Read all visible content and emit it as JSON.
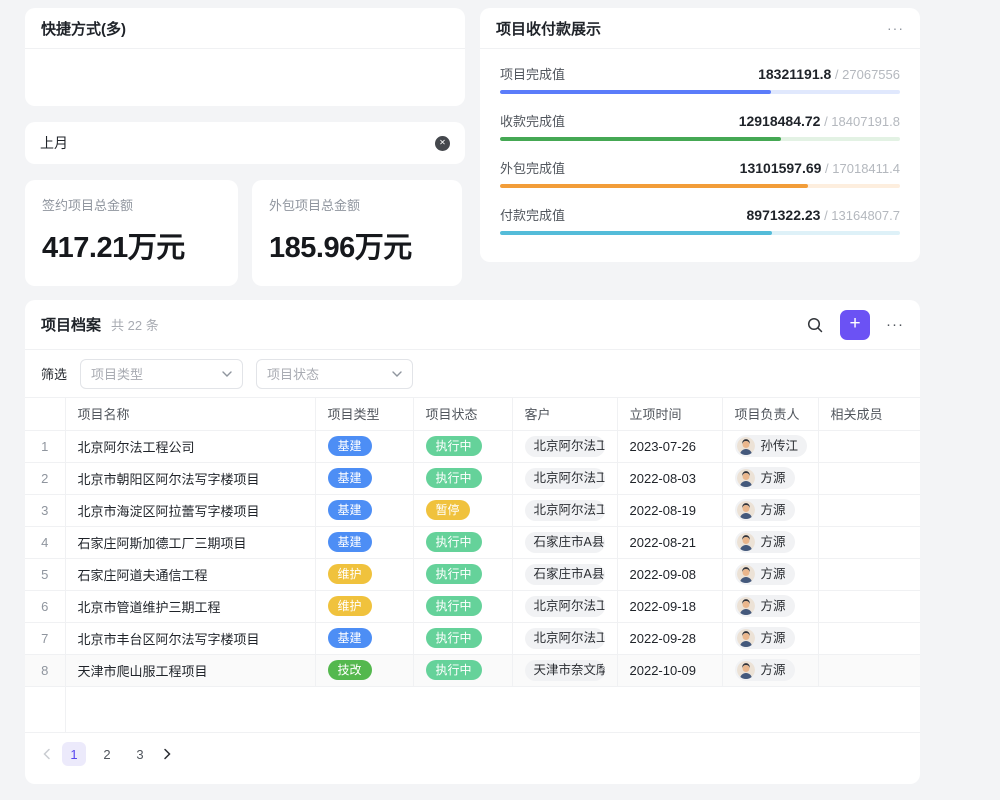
{
  "shortcut_card": {
    "title": "快捷方式(多)"
  },
  "chip_card": {
    "label": "上月",
    "clear_icon": "circle-x"
  },
  "stat_cards": [
    {
      "label": "签约项目总金额",
      "value": "417.21万元"
    },
    {
      "label": "外包项目总金额",
      "value": "185.96万元"
    }
  ],
  "progress_card": {
    "title": "项目收付款展示",
    "menu_icon": "ellipsis-icon",
    "rows": [
      {
        "label": "项目完成值",
        "value": "18321191.8",
        "total": "27067556",
        "bar_color": "#5b7cfa",
        "track_color": "#e0e8fd"
      },
      {
        "label": "收款完成值",
        "value": "12918484.72",
        "total": "18407191.8",
        "bar_color": "#45a854",
        "track_color": "#e3f2e4"
      },
      {
        "label": "外包完成值",
        "value": "13101597.69",
        "total": "17018411.4",
        "bar_color": "#f29d39",
        "track_color": "#fdeede"
      },
      {
        "label": "付款完成值",
        "value": "8971322.23",
        "total": "13164807.7",
        "bar_color": "#54bcd9",
        "track_color": "#def1f8"
      }
    ]
  },
  "table_card": {
    "title": "项目档案",
    "count": "共 22 条",
    "actions": {
      "search_icon": "search",
      "add_button": "+",
      "more_icon": "⋯"
    },
    "filter": {
      "label": "筛选",
      "dropdowns": [
        {
          "placeholder": "项目类型"
        },
        {
          "placeholder": "项目状态"
        }
      ]
    },
    "columns": [
      "项目名称",
      "项目类型",
      "项目状态",
      "客户",
      "立项时间",
      "项目负责人",
      "相关成员"
    ],
    "type_tag_colors": {
      "基建": "#4d8ef5",
      "维护": "#f0c23d",
      "技改": "#54b84e"
    },
    "status_tag_colors": {
      "执行中": "#65d29a",
      "暂停": "#f0c23d"
    },
    "rows": [
      {
        "num": "1",
        "name": "北京阿尔法工程公司",
        "type": "基建",
        "status": "执行中",
        "customer": "北京阿尔法工程公司",
        "date": "2023-07-26",
        "owner": "孙传江",
        "members": "",
        "highlight": false
      },
      {
        "num": "2",
        "name": "北京市朝阳区阿尔法写字楼项目",
        "type": "基建",
        "status": "执行中",
        "customer": "北京阿尔法工程公司",
        "date": "2022-08-03",
        "owner": "方源",
        "members": "",
        "highlight": false
      },
      {
        "num": "3",
        "name": "北京市海淀区阿拉蕾写字楼项目",
        "type": "基建",
        "status": "暂停",
        "customer": "北京阿尔法工程公司",
        "date": "2022-08-19",
        "owner": "方源",
        "members": "",
        "highlight": false
      },
      {
        "num": "4",
        "name": "石家庄阿斯加德工厂三期项目",
        "type": "基建",
        "status": "执行中",
        "customer": "石家庄市A县城投",
        "date": "2022-08-21",
        "owner": "方源",
        "members": "",
        "highlight": false
      },
      {
        "num": "5",
        "name": "石家庄阿道夫通信工程",
        "type": "维护",
        "status": "执行中",
        "customer": "石家庄市A县城投",
        "date": "2022-09-08",
        "owner": "方源",
        "members": "",
        "highlight": false
      },
      {
        "num": "6",
        "name": "北京市管道维护三期工程",
        "type": "维护",
        "status": "执行中",
        "customer": "北京阿尔法工程公司",
        "date": "2022-09-18",
        "owner": "方源",
        "members": "",
        "highlight": false
      },
      {
        "num": "7",
        "name": "北京市丰台区阿尔法写字楼项目",
        "type": "基建",
        "status": "执行中",
        "customer": "北京阿尔法工程公司",
        "date": "2022-09-28",
        "owner": "方源",
        "members": "",
        "highlight": false
      },
      {
        "num": "8",
        "name": "天津市爬山服工程项目",
        "type": "技改",
        "status": "执行中",
        "customer": "天津市奈文摩尔",
        "date": "2022-10-09",
        "owner": "方源",
        "members": "",
        "highlight": true
      }
    ],
    "pagination": {
      "prev_icon": "chevron-left",
      "pages": [
        "1",
        "2",
        "3"
      ],
      "active_page": "1",
      "next_icon": "chevron-right"
    }
  }
}
